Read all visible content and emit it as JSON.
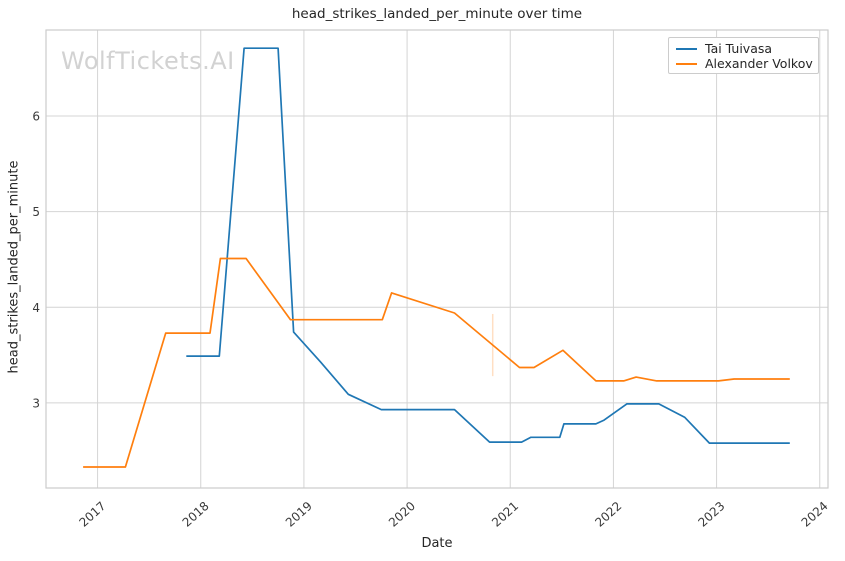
{
  "watermark": {
    "text": "WolfTickets.AI"
  },
  "colors": {
    "background": "#ffffff",
    "grid": "#d4d4d4",
    "plot_border": "#cccccc",
    "title_text": "#262626",
    "tick_text": "#3a3a3a",
    "watermark_text": "#d2d2d2",
    "series_blue": "#1f77b4",
    "series_orange": "#ff7f0e"
  },
  "chart_data": {
    "type": "line",
    "title": "head_strikes_landed_per_minute over time",
    "xlabel": "Date",
    "ylabel": "head_strikes_landed_per_minute",
    "x_ticks": [
      2017,
      2018,
      2019,
      2020,
      2021,
      2022,
      2023,
      2024
    ],
    "y_ticks": [
      3,
      4,
      5,
      6
    ],
    "xlim": [
      2016.5,
      2024.08
    ],
    "ylim": [
      2.11,
      6.9
    ],
    "grid": true,
    "legend_position": "top-right",
    "series": [
      {
        "name": "Tai Tuivasa",
        "color": "#1f77b4",
        "points": [
          [
            2017.86,
            3.49
          ],
          [
            2018.18,
            3.49
          ],
          [
            2018.42,
            6.71
          ],
          [
            2018.75,
            6.71
          ],
          [
            2018.9,
            3.74
          ],
          [
            2019.16,
            3.43
          ],
          [
            2019.43,
            3.09
          ],
          [
            2019.75,
            2.93
          ],
          [
            2020.46,
            2.93
          ],
          [
            2020.8,
            2.59
          ],
          [
            2021.11,
            2.59
          ],
          [
            2021.2,
            2.64
          ],
          [
            2021.48,
            2.64
          ],
          [
            2021.52,
            2.78
          ],
          [
            2021.83,
            2.78
          ],
          [
            2021.91,
            2.82
          ],
          [
            2022.13,
            2.99
          ],
          [
            2022.44,
            2.99
          ],
          [
            2022.69,
            2.85
          ],
          [
            2022.93,
            2.58
          ],
          [
            2023.71,
            2.58
          ]
        ]
      },
      {
        "name": "Alexander Volkov",
        "color": "#ff7f0e",
        "points": [
          [
            2016.86,
            2.33
          ],
          [
            2017.27,
            2.33
          ],
          [
            2017.66,
            3.73
          ],
          [
            2018.09,
            3.73
          ],
          [
            2018.19,
            4.51
          ],
          [
            2018.44,
            4.51
          ],
          [
            2018.87,
            3.87
          ],
          [
            2019.76,
            3.87
          ],
          [
            2019.85,
            4.15
          ],
          [
            2020.46,
            3.94
          ],
          [
            2021.09,
            3.37
          ],
          [
            2021.23,
            3.37
          ],
          [
            2021.51,
            3.55
          ],
          [
            2021.83,
            3.23
          ],
          [
            2022.1,
            3.23
          ],
          [
            2022.22,
            3.27
          ],
          [
            2022.42,
            3.23
          ],
          [
            2023.02,
            3.23
          ],
          [
            2023.17,
            3.25
          ],
          [
            2023.71,
            3.25
          ]
        ]
      }
    ],
    "annotations": [
      {
        "type": "vline-segment",
        "x": 2020.83,
        "y_from": 3.28,
        "y_to": 3.93,
        "color": "#ff7f0e",
        "opacity": 0.25
      }
    ]
  }
}
